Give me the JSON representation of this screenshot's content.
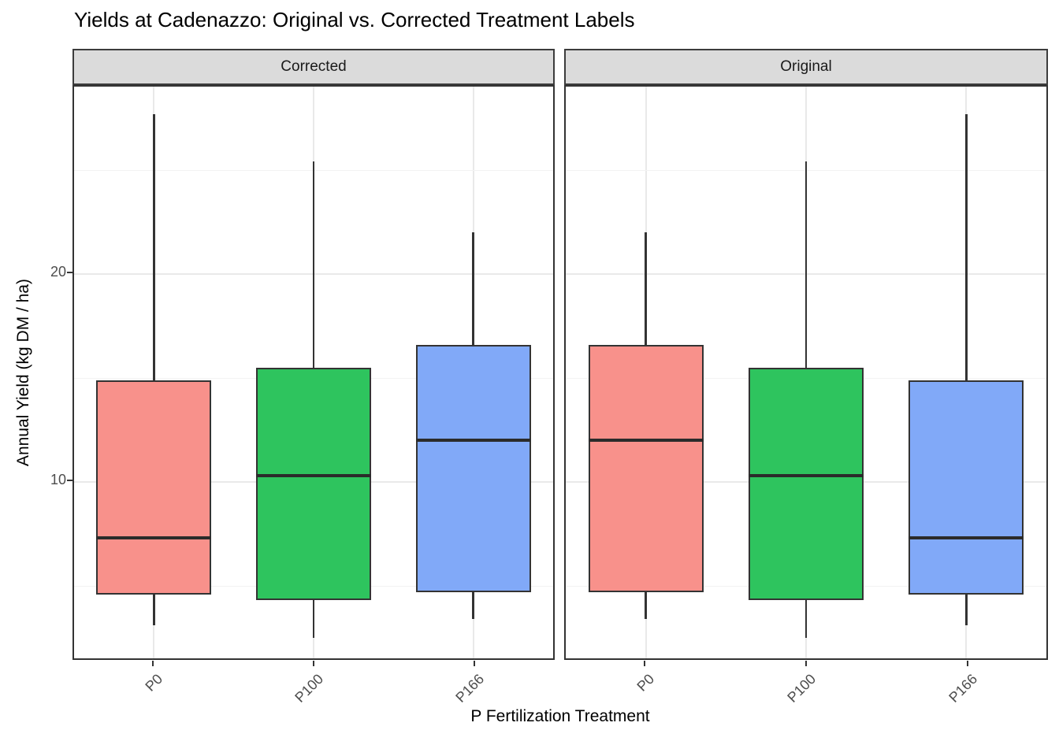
{
  "chart_data": {
    "type": "boxplot",
    "title": "Yields at Cadenazzo: Original vs. Corrected Treatment Labels",
    "xlabel": "P Fertilization Treatment",
    "ylabel": "Annual Yield (kg DM / ha)",
    "categories": [
      "P0",
      "P100",
      "P166"
    ],
    "y_major_ticks": [
      10,
      20
    ],
    "y_minor_ticks": [
      5,
      15,
      25
    ],
    "ylim": [
      1.4,
      29.0
    ],
    "grid": true,
    "legend": "none",
    "facets": [
      {
        "label": "Corrected",
        "boxes": [
          {
            "category": "P0",
            "fill": "#F8918B",
            "whisker_low": 3.1,
            "q1": 4.6,
            "median": 7.3,
            "q3": 14.9,
            "whisker_high": 27.7
          },
          {
            "category": "P100",
            "fill": "#2EC45E",
            "whisker_low": 2.5,
            "q1": 4.3,
            "median": 10.3,
            "q3": 15.5,
            "whisker_high": 25.4
          },
          {
            "category": "P166",
            "fill": "#81A9F8",
            "whisker_low": 3.4,
            "q1": 4.7,
            "median": 12.0,
            "q3": 16.6,
            "whisker_high": 22.0
          }
        ]
      },
      {
        "label": "Original",
        "boxes": [
          {
            "category": "P0",
            "fill": "#F8918B",
            "whisker_low": 3.4,
            "q1": 4.7,
            "median": 12.0,
            "q3": 16.6,
            "whisker_high": 22.0
          },
          {
            "category": "P100",
            "fill": "#2EC45E",
            "whisker_low": 2.5,
            "q1": 4.3,
            "median": 10.3,
            "q3": 15.5,
            "whisker_high": 25.4
          },
          {
            "category": "P166",
            "fill": "#81A9F8",
            "whisker_low": 3.1,
            "q1": 4.6,
            "median": 7.3,
            "q3": 14.9,
            "whisker_high": 27.7
          }
        ]
      }
    ],
    "colors": {
      "strip_bg": "#DBDBDB",
      "stroke": "#333333",
      "grid_major": "#E9E9E9",
      "grid_minor": "#F3F3F3",
      "tick_text": "#4D4D4D"
    }
  }
}
